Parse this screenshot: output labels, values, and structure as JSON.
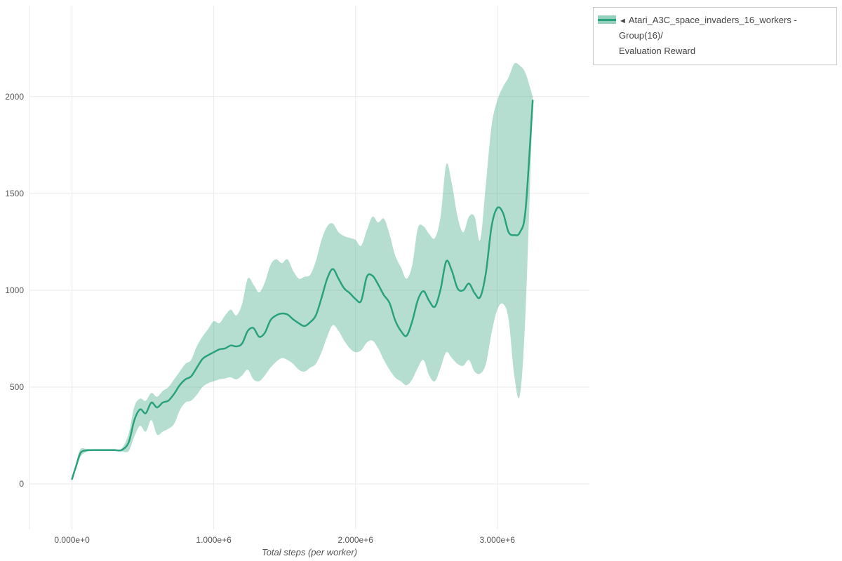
{
  "legend": {
    "toggle_icon": "◄",
    "series_label_line1": "Atari_A3C_space_invaders_16_workers - Group(16)/",
    "series_label_line2": "Evaluation Reward"
  },
  "axes": {
    "x_title": "Total steps (per worker)"
  },
  "chart_data": {
    "type": "line",
    "title": "",
    "series_name": "Atari_A3C_space_invaders_16_workers - Group(16)/Evaluation Reward",
    "xlabel": "Total steps (per worker)",
    "ylabel": "",
    "grid": true,
    "legend_position": "top-right",
    "x_unit": "steps",
    "x_scale_note": "x values are in millions of steps",
    "x_domain": [
      -0.3,
      3.65
    ],
    "y_domain": [
      -235,
      2470
    ],
    "x_ticks": [
      {
        "value": 0,
        "label": "0.000e+0"
      },
      {
        "value": 1,
        "label": "1.000e+6"
      },
      {
        "value": 2,
        "label": "2.000e+6"
      },
      {
        "value": 3,
        "label": "3.000e+6"
      }
    ],
    "y_ticks": [
      {
        "value": 0,
        "label": "0"
      },
      {
        "value": 500,
        "label": "500"
      },
      {
        "value": 1000,
        "label": "1000"
      },
      {
        "value": 1500,
        "label": "1500"
      },
      {
        "value": 2000,
        "label": "2000"
      }
    ],
    "x": [
      0.0,
      0.03,
      0.06,
      0.1,
      0.15,
      0.2,
      0.25,
      0.3,
      0.35,
      0.4,
      0.44,
      0.48,
      0.52,
      0.56,
      0.6,
      0.64,
      0.68,
      0.72,
      0.76,
      0.8,
      0.84,
      0.88,
      0.92,
      0.96,
      1.0,
      1.04,
      1.08,
      1.12,
      1.16,
      1.2,
      1.24,
      1.28,
      1.32,
      1.36,
      1.4,
      1.44,
      1.48,
      1.52,
      1.56,
      1.6,
      1.64,
      1.68,
      1.72,
      1.76,
      1.8,
      1.84,
      1.88,
      1.92,
      1.96,
      2.0,
      2.04,
      2.08,
      2.12,
      2.16,
      2.2,
      2.24,
      2.28,
      2.32,
      2.36,
      2.4,
      2.44,
      2.48,
      2.52,
      2.56,
      2.6,
      2.64,
      2.68,
      2.72,
      2.76,
      2.8,
      2.84,
      2.88,
      2.92,
      2.96,
      3.0,
      3.04,
      3.08,
      3.12,
      3.16,
      3.2,
      3.25
    ],
    "series": [
      {
        "name": "Evaluation Reward (mean)",
        "values": [
          25,
          95,
          160,
          173,
          175,
          175,
          175,
          175,
          175,
          215,
          330,
          385,
          365,
          420,
          395,
          420,
          430,
          465,
          510,
          540,
          555,
          600,
          645,
          665,
          680,
          695,
          700,
          715,
          710,
          725,
          790,
          805,
          760,
          780,
          845,
          870,
          880,
          875,
          850,
          830,
          815,
          835,
          870,
          960,
          1060,
          1110,
          1060,
          1010,
          985,
          955,
          945,
          1070,
          1075,
          1030,
          975,
          935,
          845,
          790,
          765,
          840,
          950,
          995,
          945,
          915,
          1005,
          1150,
          1100,
          1010,
          1000,
          1035,
          985,
          965,
          1090,
          1330,
          1425,
          1400,
          1300,
          1285,
          1300,
          1420,
          1980
        ],
        "lower": [
          25,
          80,
          140,
          165,
          172,
          173,
          173,
          172,
          168,
          170,
          245,
          300,
          270,
          330,
          255,
          270,
          285,
          310,
          380,
          420,
          430,
          460,
          500,
          520,
          530,
          540,
          545,
          550,
          540,
          560,
          590,
          540,
          530,
          560,
          600,
          630,
          650,
          640,
          620,
          590,
          580,
          600,
          620,
          680,
          760,
          820,
          790,
          740,
          700,
          680,
          690,
          730,
          740,
          700,
          640,
          590,
          550,
          530,
          510,
          540,
          600,
          640,
          560,
          530,
          600,
          680,
          650,
          620,
          610,
          640,
          580,
          570,
          620,
          780,
          900,
          930,
          850,
          560,
          460,
          900,
          1960
        ],
        "upper": [
          25,
          110,
          180,
          181,
          178,
          177,
          177,
          178,
          182,
          260,
          400,
          440,
          430,
          470,
          450,
          480,
          500,
          540,
          580,
          620,
          640,
          710,
          760,
          800,
          840,
          830,
          870,
          900,
          870,
          930,
          1060,
          1030,
          990,
          1040,
          1130,
          1160,
          1140,
          1160,
          1100,
          1060,
          1070,
          1080,
          1150,
          1260,
          1330,
          1345,
          1300,
          1280,
          1270,
          1260,
          1230,
          1310,
          1380,
          1350,
          1370,
          1290,
          1180,
          1120,
          1060,
          1130,
          1320,
          1330,
          1290,
          1270,
          1380,
          1650,
          1550,
          1380,
          1300,
          1380,
          1380,
          1260,
          1550,
          1850,
          1980,
          2050,
          2100,
          2170,
          2160,
          2120,
          2000
        ]
      }
    ],
    "colors": {
      "line": "#2aa17c",
      "band": "#2aa17c",
      "band_opacity": 0.35,
      "grid": "#ebebeb",
      "text": "#555555",
      "legend_border": "#c9c9c9"
    }
  }
}
